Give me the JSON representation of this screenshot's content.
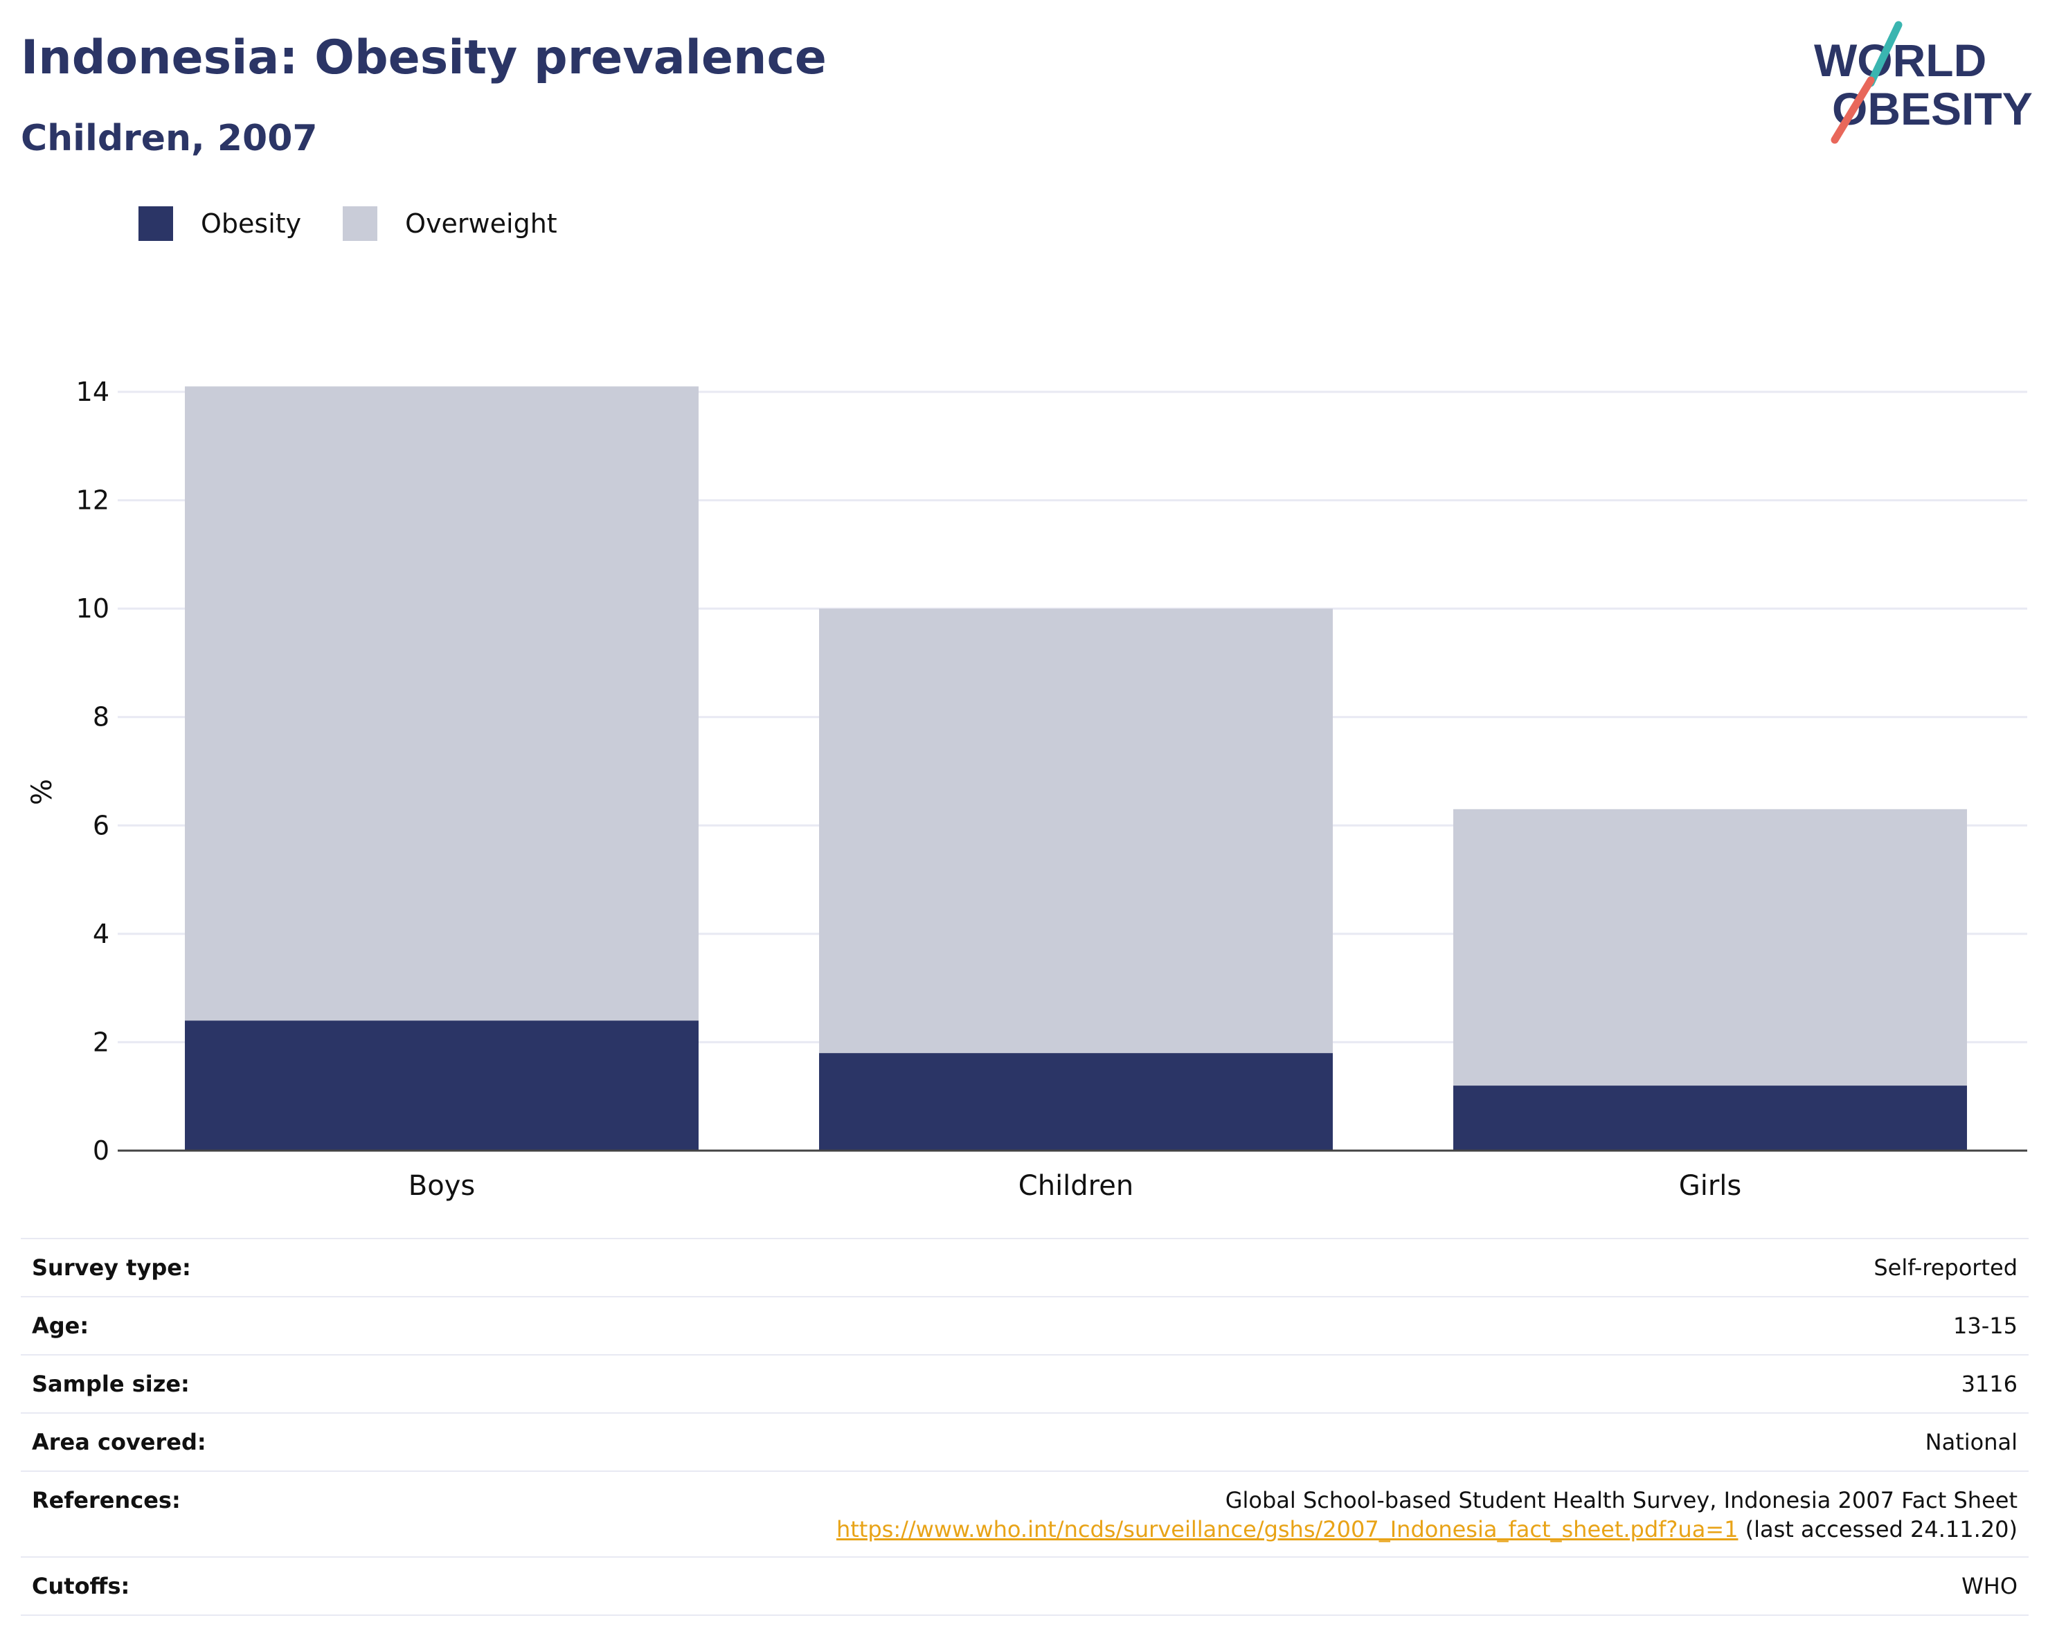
{
  "header": {
    "title": "Indonesia: Obesity prevalence",
    "subtitle": "Children, 2007",
    "logo_line1": "WORLD",
    "logo_line2": "OBESITY"
  },
  "legend": {
    "items": [
      {
        "label": "Obesity",
        "color": "#2b3566"
      },
      {
        "label": "Overweight",
        "color": "#c9ccd8"
      }
    ]
  },
  "chart_data": {
    "type": "bar",
    "stacked": true,
    "categories": [
      "Boys",
      "Children",
      "Girls"
    ],
    "series": [
      {
        "name": "Obesity",
        "color": "#2b3566",
        "values": [
          2.4,
          1.8,
          1.2
        ]
      },
      {
        "name": "Overweight",
        "color": "#c9ccd8",
        "values": [
          11.7,
          8.2,
          5.1
        ]
      }
    ],
    "ylabel": "%",
    "ylim": [
      0,
      14
    ],
    "yticks": [
      0,
      2,
      4,
      6,
      8,
      10,
      12,
      14
    ],
    "grid": true,
    "legend_position": "top-left"
  },
  "info": {
    "survey_type": {
      "label": "Survey type:",
      "value": "Self-reported"
    },
    "age": {
      "label": "Age:",
      "value": "13-15"
    },
    "sample_size": {
      "label": "Sample size:",
      "value": "3116"
    },
    "area_covered": {
      "label": "Area covered:",
      "value": "National"
    },
    "references": {
      "label": "References:",
      "line1": "Global School-based Student Health Survey, Indonesia 2007 Fact Sheet",
      "link": "https://www.who.int/ncds/surveillance/gshs/2007_Indonesia_fact_sheet.pdf?ua=1",
      "suffix": " (last accessed 24.11.20)"
    },
    "cutoffs": {
      "label": "Cutoffs:",
      "value": "WHO"
    }
  },
  "colors": {
    "title": "#2b3566",
    "grid": "#e8e9f3",
    "axis": "#444444",
    "logo_teal": "#3ab5b0",
    "logo_coral": "#e8675a",
    "link": "#e8a317"
  }
}
